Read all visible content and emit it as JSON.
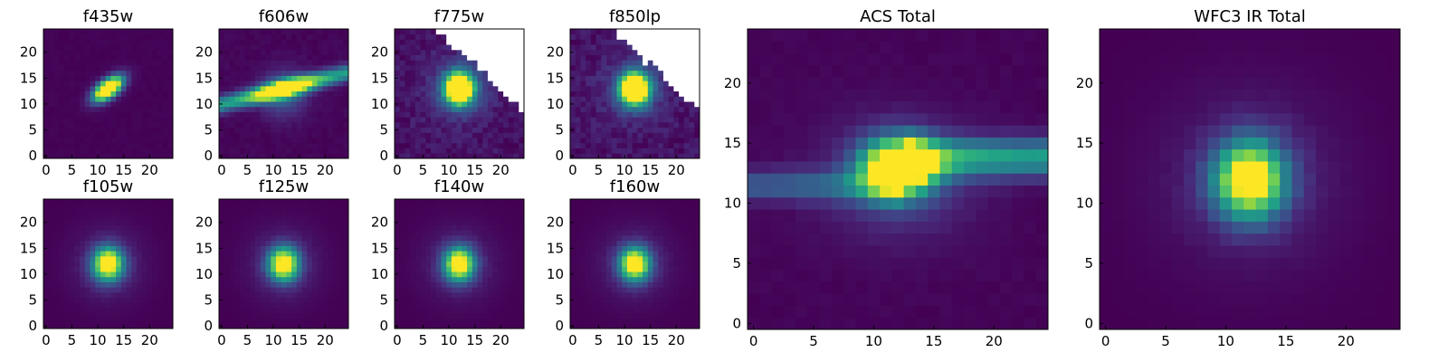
{
  "chart_data": [
    {
      "type": "heatmap",
      "title": "f435w",
      "morphology": "compact-tilted",
      "colormap": "viridis",
      "xticks": [
        "0",
        "5",
        "10",
        "15",
        "20"
      ],
      "yticks": [
        "0",
        "5",
        "10",
        "15",
        "20"
      ],
      "xlim": [
        0,
        24
      ],
      "ylim": [
        0,
        24
      ],
      "peak_center": [
        12,
        13
      ]
    },
    {
      "type": "heatmap",
      "title": "f606w",
      "morphology": "horizontal-streak",
      "colormap": "viridis",
      "xticks": [
        "0",
        "5",
        "10",
        "15",
        "20"
      ],
      "yticks": [
        "0",
        "5",
        "10",
        "15",
        "20"
      ],
      "xlim": [
        0,
        24
      ],
      "ylim": [
        0,
        24
      ],
      "peak_center": [
        12,
        13
      ]
    },
    {
      "type": "heatmap",
      "title": "f775w",
      "morphology": "blob-with-masked-corner",
      "colormap": "viridis",
      "xticks": [
        "0",
        "5",
        "10",
        "15",
        "20"
      ],
      "yticks": [
        "0",
        "5",
        "10",
        "15",
        "20"
      ],
      "xlim": [
        0,
        24
      ],
      "ylim": [
        0,
        24
      ],
      "peak_center": [
        12,
        13
      ]
    },
    {
      "type": "heatmap",
      "title": "f850lp",
      "morphology": "blob-with-masked-corner",
      "colormap": "viridis",
      "xticks": [
        "0",
        "5",
        "10",
        "15",
        "20"
      ],
      "yticks": [
        "0",
        "5",
        "10",
        "15",
        "20"
      ],
      "xlim": [
        0,
        24
      ],
      "ylim": [
        0,
        24
      ],
      "peak_center": [
        12,
        13
      ]
    },
    {
      "type": "heatmap",
      "title": "f105w",
      "morphology": "round-blob",
      "colormap": "viridis",
      "xticks": [
        "0",
        "5",
        "10",
        "15",
        "20"
      ],
      "yticks": [
        "0",
        "5",
        "10",
        "15",
        "20"
      ],
      "xlim": [
        0,
        24
      ],
      "ylim": [
        0,
        24
      ],
      "peak_center": [
        12,
        12
      ]
    },
    {
      "type": "heatmap",
      "title": "f125w",
      "morphology": "round-blob",
      "colormap": "viridis",
      "xticks": [
        "0",
        "5",
        "10",
        "15",
        "20"
      ],
      "yticks": [
        "0",
        "5",
        "10",
        "15",
        "20"
      ],
      "xlim": [
        0,
        24
      ],
      "ylim": [
        0,
        24
      ],
      "peak_center": [
        12,
        12
      ]
    },
    {
      "type": "heatmap",
      "title": "f140w",
      "morphology": "round-blob",
      "colormap": "viridis",
      "xticks": [
        "0",
        "5",
        "10",
        "15",
        "20"
      ],
      "yticks": [
        "0",
        "5",
        "10",
        "15",
        "20"
      ],
      "xlim": [
        0,
        24
      ],
      "ylim": [
        0,
        24
      ],
      "peak_center": [
        12,
        12
      ]
    },
    {
      "type": "heatmap",
      "title": "f160w",
      "morphology": "round-blob",
      "colormap": "viridis",
      "xticks": [
        "0",
        "5",
        "10",
        "15",
        "20"
      ],
      "yticks": [
        "0",
        "5",
        "10",
        "15",
        "20"
      ],
      "xlim": [
        0,
        24
      ],
      "ylim": [
        0,
        24
      ],
      "peak_center": [
        12,
        12
      ]
    },
    {
      "type": "heatmap",
      "title": "ACS Total",
      "morphology": "blob-plus-streak",
      "colormap": "viridis",
      "xticks": [
        "0",
        "5",
        "10",
        "15",
        "20"
      ],
      "yticks": [
        "0",
        "5",
        "10",
        "15",
        "20"
      ],
      "xlim": [
        0,
        24
      ],
      "ylim": [
        0,
        24
      ],
      "peak_center": [
        12,
        13
      ]
    },
    {
      "type": "heatmap",
      "title": "WFC3 IR Total",
      "morphology": "round-blob",
      "colormap": "viridis",
      "xticks": [
        "0",
        "5",
        "10",
        "15",
        "20"
      ],
      "yticks": [
        "0",
        "5",
        "10",
        "15",
        "20"
      ],
      "xlim": [
        0,
        24
      ],
      "ylim": [
        0,
        24
      ],
      "peak_center": [
        12,
        12
      ]
    }
  ]
}
